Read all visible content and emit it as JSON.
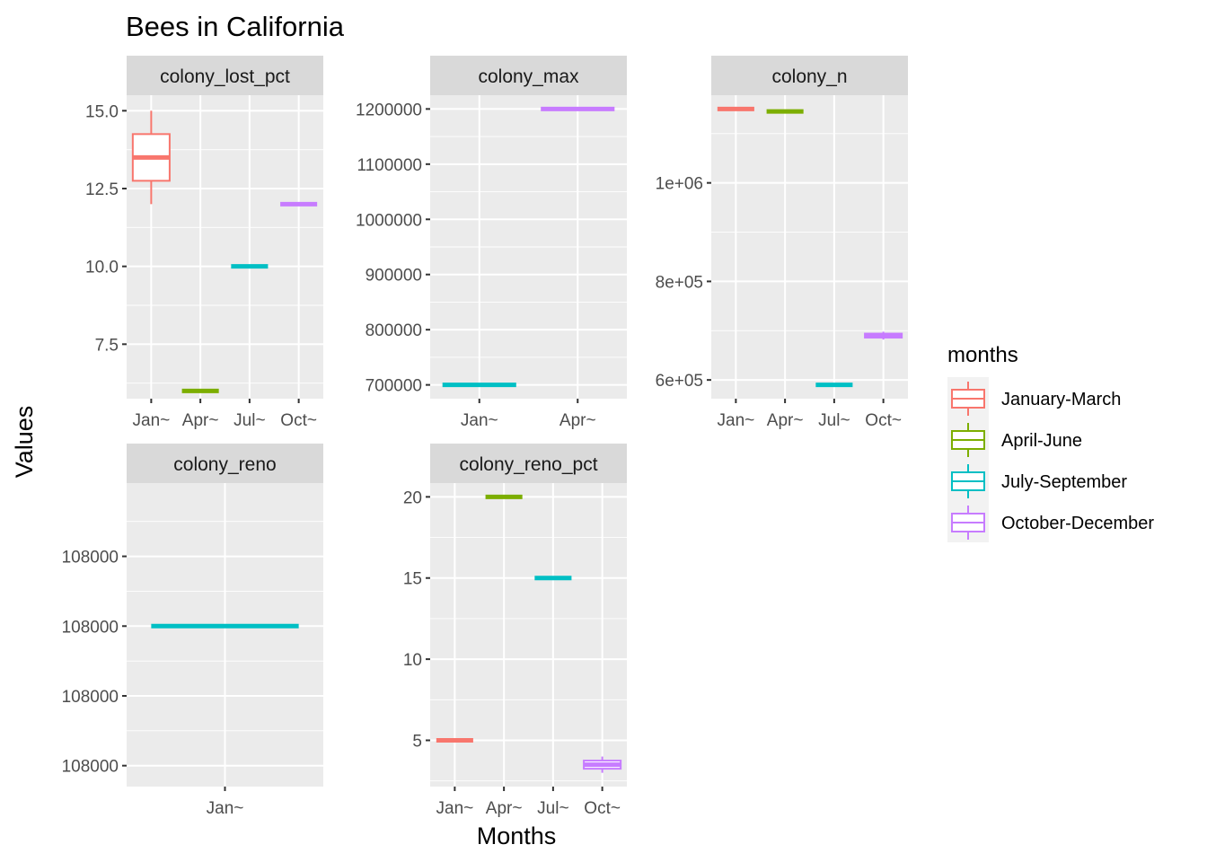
{
  "title": "Bees in California",
  "xlabel": "Months",
  "ylabel": "Values",
  "legend": {
    "title": "months",
    "placement": "right",
    "items": [
      {
        "label": "January-March",
        "color": "#F8766D"
      },
      {
        "label": "April-June",
        "color": "#7CAE00"
      },
      {
        "label": "July-September",
        "color": "#00BFC4"
      },
      {
        "label": "October-December",
        "color": "#C77CFF"
      }
    ]
  },
  "chart_data": [
    {
      "type": "box",
      "facet": "colony_lost_pct",
      "categories": [
        "Jan~",
        "Apr~",
        "Jul~",
        "Oct~"
      ],
      "ylim": [
        5.75,
        15.5
      ],
      "yticks": [
        7.5,
        10.0,
        12.5,
        15.0
      ],
      "ytick_labels": [
        "7.5",
        "10.0",
        "12.5",
        "15.0"
      ],
      "boxes": [
        {
          "category": "Jan~",
          "series": "January-March",
          "min": 12,
          "q1": 12.75,
          "median": 13.5,
          "q3": 14.25,
          "max": 15
        },
        {
          "category": "Apr~",
          "series": "April-June",
          "min": 6,
          "q1": 6,
          "median": 6,
          "q3": 6,
          "max": 6
        },
        {
          "category": "Jul~",
          "series": "July-September",
          "min": 10,
          "q1": 10,
          "median": 10,
          "q3": 10,
          "max": 10
        },
        {
          "category": "Oct~",
          "series": "October-December",
          "min": 12,
          "q1": 12,
          "median": 12,
          "q3": 12,
          "max": 12
        }
      ]
    },
    {
      "type": "box",
      "facet": "colony_max",
      "categories": [
        "Jan~",
        "Apr~"
      ],
      "ylim": [
        675000,
        1225000
      ],
      "yticks": [
        700000,
        800000,
        900000,
        1000000,
        1100000,
        1200000
      ],
      "ytick_labels": [
        "700000",
        "800000",
        "900000",
        "1000000",
        "1100000",
        "1200000"
      ],
      "boxes": [
        {
          "category": "Jan~",
          "series": "July-September",
          "min": 700000,
          "q1": 700000,
          "median": 700000,
          "q3": 700000,
          "max": 700000
        },
        {
          "category": "Apr~",
          "series": "October-December",
          "min": 1200000,
          "q1": 1200000,
          "median": 1200000,
          "q3": 1200000,
          "max": 1200000
        }
      ]
    },
    {
      "type": "box",
      "facet": "colony_n",
      "categories": [
        "Jan~",
        "Apr~",
        "Jul~",
        "Oct~"
      ],
      "ylim": [
        562000,
        1178000
      ],
      "yticks": [
        600000,
        800000,
        1000000
      ],
      "ytick_labels": [
        "6e+05",
        "8e+05",
        "1e+06"
      ],
      "boxes": [
        {
          "category": "Jan~",
          "series": "January-March",
          "min": 1150000,
          "q1": 1150000,
          "median": 1150000,
          "q3": 1150000,
          "max": 1150000
        },
        {
          "category": "Apr~",
          "series": "April-June",
          "min": 1145000,
          "q1": 1145000,
          "median": 1145000,
          "q3": 1145000,
          "max": 1145000
        },
        {
          "category": "Jul~",
          "series": "July-September",
          "min": 590000,
          "q1": 590000,
          "median": 590000,
          "q3": 590000,
          "max": 590000
        },
        {
          "category": "Oct~",
          "series": "October-December",
          "min": 682000,
          "q1": 686000,
          "median": 690000,
          "q3": 694000,
          "max": 698000
        }
      ]
    },
    {
      "type": "box",
      "facet": "colony_reno",
      "categories": [
        "Jan~"
      ],
      "ylim": [
        107999.977,
        108000.0205
      ],
      "yticks": [
        107999.98,
        107999.99,
        108000.0,
        108000.01
      ],
      "ytick_labels": [
        "108000",
        "108000",
        "108000",
        "108000"
      ],
      "boxes": [
        {
          "category": "Jan~",
          "series": "July-September",
          "min": 108000,
          "q1": 108000,
          "median": 108000,
          "q3": 108000,
          "max": 108000
        }
      ]
    },
    {
      "type": "box",
      "facet": "colony_reno_pct",
      "categories": [
        "Jan~",
        "Apr~",
        "Jul~",
        "Oct~"
      ],
      "ylim": [
        2.15,
        20.85
      ],
      "yticks": [
        5,
        10,
        15,
        20
      ],
      "ytick_labels": [
        "5",
        "10",
        "15",
        "20"
      ],
      "boxes": [
        {
          "category": "Jan~",
          "series": "January-March",
          "min": 5,
          "q1": 5,
          "median": 5,
          "q3": 5,
          "max": 5
        },
        {
          "category": "Apr~",
          "series": "April-June",
          "min": 20,
          "q1": 20,
          "median": 20,
          "q3": 20,
          "max": 20
        },
        {
          "category": "Jul~",
          "series": "July-September",
          "min": 15,
          "q1": 15,
          "median": 15,
          "q3": 15,
          "max": 15
        },
        {
          "category": "Oct~",
          "series": "October-December",
          "min": 3,
          "q1": 3.25,
          "median": 3.5,
          "q3": 3.75,
          "max": 4
        }
      ]
    }
  ]
}
